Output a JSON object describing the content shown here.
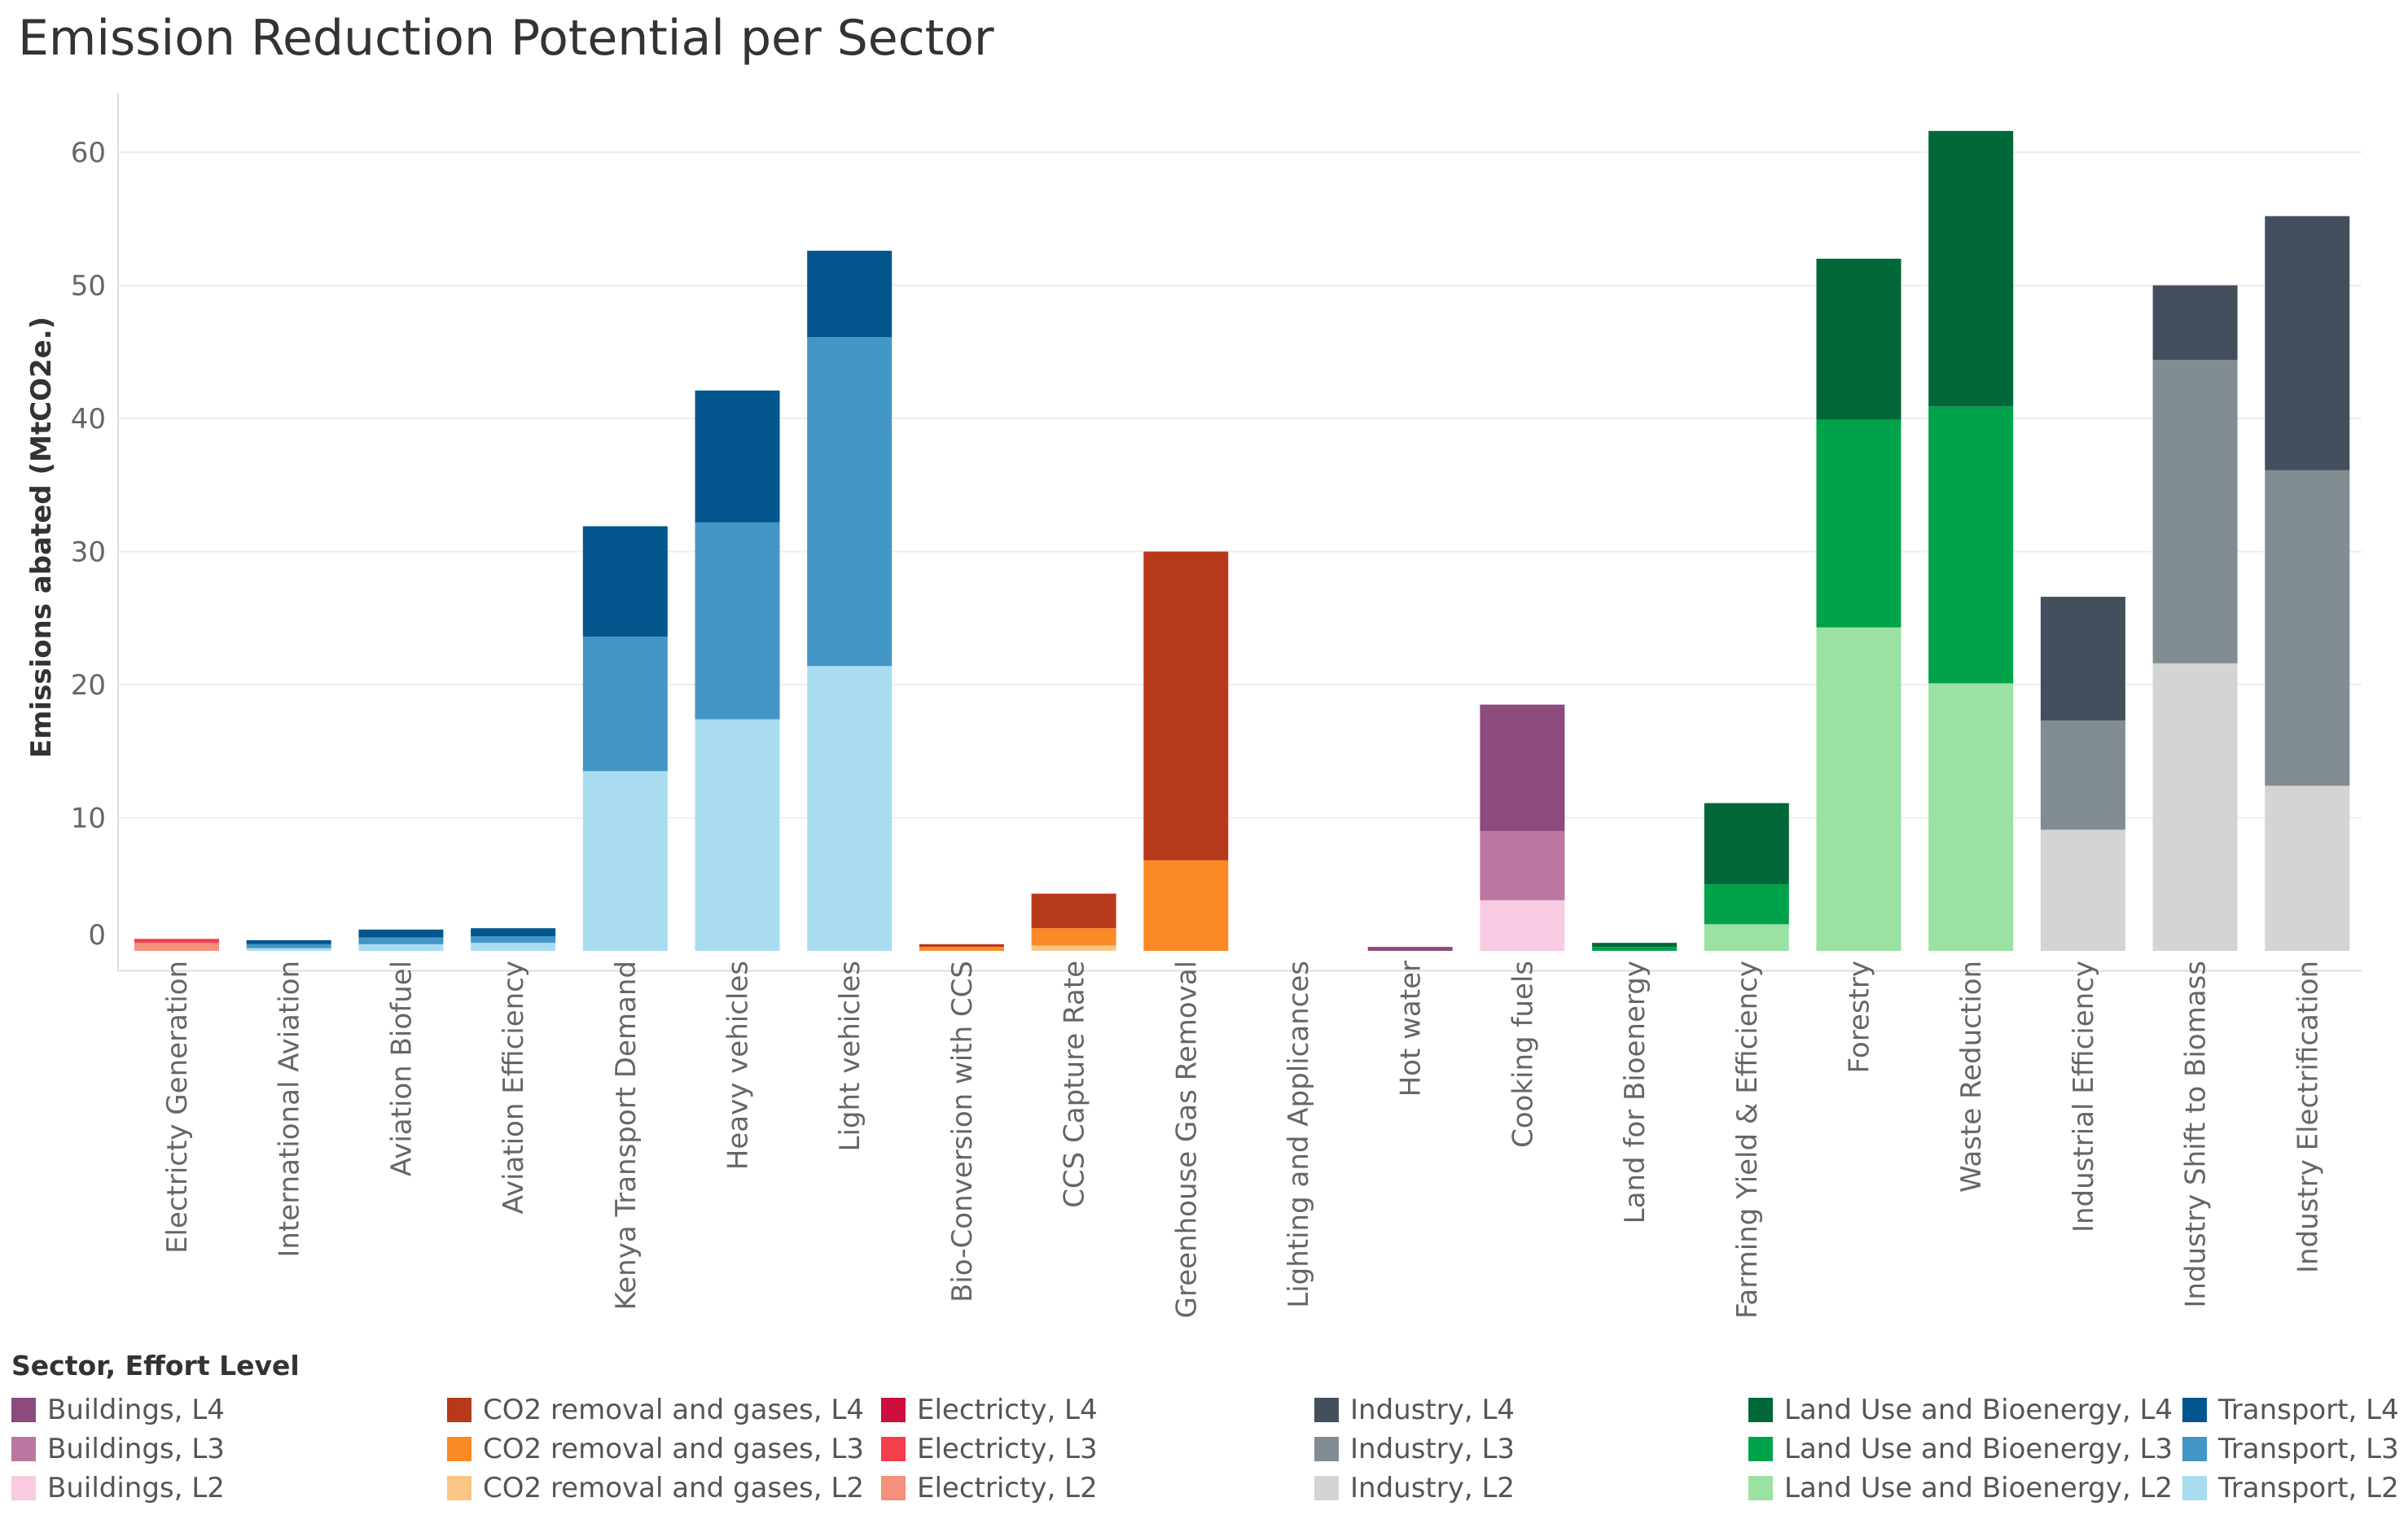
{
  "chart_data": {
    "type": "bar",
    "stacked": true,
    "title": "Emission Reduction Potential per Sector",
    "xlabel": "",
    "ylabel": "Emissions abated (MtCO2e.)",
    "ylim": [
      -1.5,
      64
    ],
    "yticks": [
      0,
      10,
      20,
      30,
      40,
      50,
      60
    ],
    "grid": true,
    "legend_title": "Sector, Effort Level",
    "legend_position": "bottom",
    "categories": [
      "Electricty Generation",
      "International Aviation",
      "Aviation Biofuel",
      "Aviation Efficiency",
      "Kenya Transport Demand",
      "Heavy vehicles",
      "Light vehicles",
      "Bio-Conversion with CCS",
      "CCS Capture Rate",
      "Greenhouse Gas Removal",
      "Lighting and Applicances",
      "Hot water",
      "Cooking fuels",
      "Land for Bioenergy",
      "Farming Yield & Efficiency",
      "Forestry",
      "Waste Reduction",
      "Industrial Efficiency",
      "Industry Shift to Biomass",
      "Industry Electrification"
    ],
    "series": [
      {
        "name": "Buildings, L4",
        "color": "#8c4a7d",
        "values": [
          0,
          0,
          0,
          0,
          0,
          0,
          0,
          0,
          0,
          0,
          0,
          0.3,
          9.5,
          0,
          0,
          0,
          0,
          0,
          0,
          0
        ]
      },
      {
        "name": "Buildings, L3",
        "color": "#bb77a0",
        "values": [
          0,
          0,
          0,
          0,
          0,
          0,
          0,
          0,
          0,
          0,
          0,
          0,
          5.2,
          0,
          0,
          0,
          0,
          0,
          0,
          0
        ]
      },
      {
        "name": "Buildings, L2",
        "color": "#f8cbe3",
        "values": [
          0,
          0,
          0,
          0,
          0,
          0,
          0,
          0,
          0,
          0,
          0,
          0,
          3.8,
          0,
          0,
          0,
          0,
          0,
          0,
          0
        ]
      },
      {
        "name": "CO2 removal and gases, L4",
        "color": "#b7391c",
        "values": [
          0,
          0,
          0,
          0,
          0,
          0,
          0,
          0.2,
          2.6,
          23.2,
          0,
          0,
          0,
          0,
          0,
          0,
          0,
          0,
          0,
          0
        ]
      },
      {
        "name": "CO2 removal and gases, L3",
        "color": "#fb8a26",
        "values": [
          0,
          0,
          0,
          0,
          0,
          0,
          0,
          0.3,
          1.3,
          6.8,
          0,
          0,
          0,
          0,
          0,
          0,
          0,
          0,
          0,
          0
        ]
      },
      {
        "name": "CO2 removal and gases, L2",
        "color": "#fbc585",
        "values": [
          0,
          0,
          0,
          0,
          0,
          0,
          0,
          0,
          0.4,
          0,
          0,
          0,
          0,
          0,
          0,
          0,
          0,
          0,
          0,
          0
        ]
      },
      {
        "name": "Electricty, L4",
        "color": "#cc0f3d",
        "values": [
          0,
          0,
          0,
          0,
          0,
          0,
          0,
          0,
          0,
          0,
          0,
          0,
          0,
          0,
          0,
          0,
          0,
          0,
          0,
          0
        ]
      },
      {
        "name": "Electricty, L3",
        "color": "#f33e4c",
        "values": [
          0.3,
          0,
          0,
          0,
          0,
          0,
          0,
          0,
          0,
          0,
          0,
          0,
          0,
          0,
          0,
          0,
          0,
          0,
          0,
          0
        ]
      },
      {
        "name": "Electricty, L2",
        "color": "#f4907b",
        "values": [
          0.6,
          0,
          0,
          0,
          0,
          0,
          0,
          0,
          0,
          0,
          0,
          0,
          0,
          0,
          0,
          0,
          0,
          0,
          0,
          0
        ]
      },
      {
        "name": "Industry, L4",
        "color": "#434f5d",
        "values": [
          0,
          0,
          0,
          0,
          0,
          0,
          0,
          0,
          0,
          0,
          0,
          0,
          0,
          0,
          0,
          0,
          0,
          9.3,
          5.6,
          19.1
        ]
      },
      {
        "name": "Industry, L3",
        "color": "#818d93",
        "values": [
          0,
          0,
          0,
          0,
          0,
          0,
          0,
          0,
          0,
          0,
          0,
          0,
          0,
          0,
          0,
          0,
          0,
          8.2,
          22.8,
          23.7
        ]
      },
      {
        "name": "Industry, L2",
        "color": "#d4d4d4",
        "values": [
          0,
          0,
          0,
          0,
          0,
          0,
          0,
          0,
          0,
          0,
          0,
          0,
          0,
          0,
          0,
          0,
          0,
          9.1,
          21.6,
          12.4
        ]
      },
      {
        "name": "Land Use and Bioenergy, L4",
        "color": "#006838",
        "values": [
          0,
          0,
          0,
          0,
          0,
          0,
          0,
          0,
          0,
          0,
          0,
          0,
          0,
          0.3,
          6.1,
          12.1,
          20.7,
          0,
          0,
          0
        ]
      },
      {
        "name": "Land Use and Bioenergy, L3",
        "color": "#00a24a",
        "values": [
          0,
          0,
          0,
          0,
          0,
          0,
          0,
          0,
          0,
          0,
          0,
          0,
          0,
          0.3,
          3.0,
          15.6,
          20.8,
          0,
          0,
          0
        ]
      },
      {
        "name": "Land Use and Bioenergy, L2",
        "color": "#9be1a1",
        "values": [
          0,
          0,
          0,
          0,
          0,
          0,
          0,
          0,
          0,
          0,
          0,
          0,
          0,
          0,
          2.0,
          24.3,
          20.1,
          0,
          0,
          0
        ]
      },
      {
        "name": "Transport, L4",
        "color": "#02568d",
        "values": [
          0,
          0.3,
          0.6,
          0.6,
          8.3,
          9.9,
          6.5,
          0,
          0,
          0,
          0,
          0,
          0,
          0,
          0,
          0,
          0,
          0,
          0,
          0
        ]
      },
      {
        "name": "Transport, L3",
        "color": "#4396c5",
        "values": [
          0,
          0.3,
          0.5,
          0.5,
          10.1,
          14.8,
          24.7,
          0,
          0,
          0,
          0,
          0,
          0,
          0,
          0,
          0,
          0,
          0,
          0,
          0
        ]
      },
      {
        "name": "Transport, L2",
        "color": "#a9dcf1",
        "values": [
          0,
          0.2,
          0.5,
          0.6,
          13.5,
          17.4,
          21.4,
          0,
          0,
          0,
          0,
          0,
          0,
          0,
          0,
          0,
          0,
          0,
          0,
          0
        ]
      }
    ]
  }
}
